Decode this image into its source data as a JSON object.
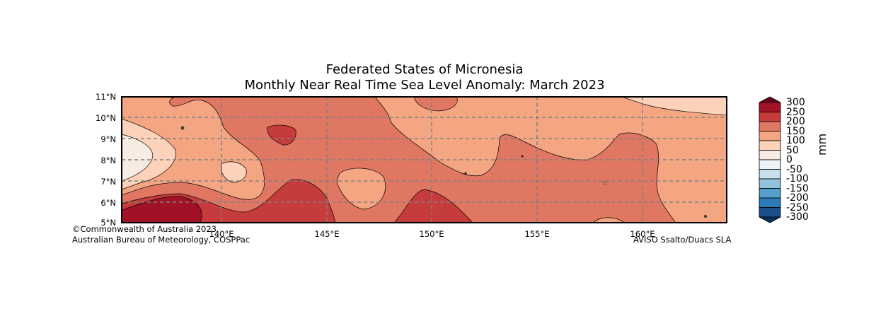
{
  "title": "Federated States of Micronesia",
  "subtitle": "Monthly Near Real Time Sea Level Anomaly: March 2023",
  "map": {
    "lon_range": [
      135,
      163.8
    ],
    "lat_range": [
      5,
      11
    ],
    "lat_ticks": [
      "11°N",
      "10°N",
      "9°N",
      "8°N",
      "7°N",
      "6°N",
      "5°N"
    ],
    "lon_ticks": [
      "140°E",
      "145°E",
      "150°E",
      "155°E",
      "160°E"
    ],
    "gridlines": true
  },
  "colorbar": {
    "unit": "mm",
    "labels": [
      "300",
      "250",
      "200",
      "150",
      "100",
      "50",
      "0",
      "-50",
      "-100",
      "-150",
      "-200",
      "-250",
      "-300"
    ],
    "colors": [
      "#67001f",
      "#a11228",
      "#c63c3c",
      "#e07762",
      "#f4a683",
      "#fcd2bb",
      "#f8ebe3",
      "#eef3f7",
      "#c8e0ee",
      "#91c1dc",
      "#549fcb",
      "#2e7ab7",
      "#1a4f8a",
      "#08305f"
    ]
  },
  "credits": {
    "copyright": "©Commonwealth of Australia 2023",
    "bureau": "Australian Bureau of Meteorology, COSPPac",
    "data_source": "AVISO Ssalto/Duacs SLA"
  }
}
